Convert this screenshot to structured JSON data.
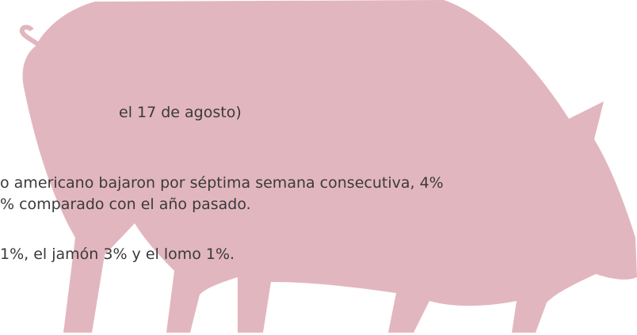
{
  "lines": [
    "el 17 de agosto)",
    "o americano bajaron por séptima semana consecutiva, 4%",
    "% comparado con el año pasado.",
    "1%, el jamón 3% y el lomo 1%."
  ]
}
